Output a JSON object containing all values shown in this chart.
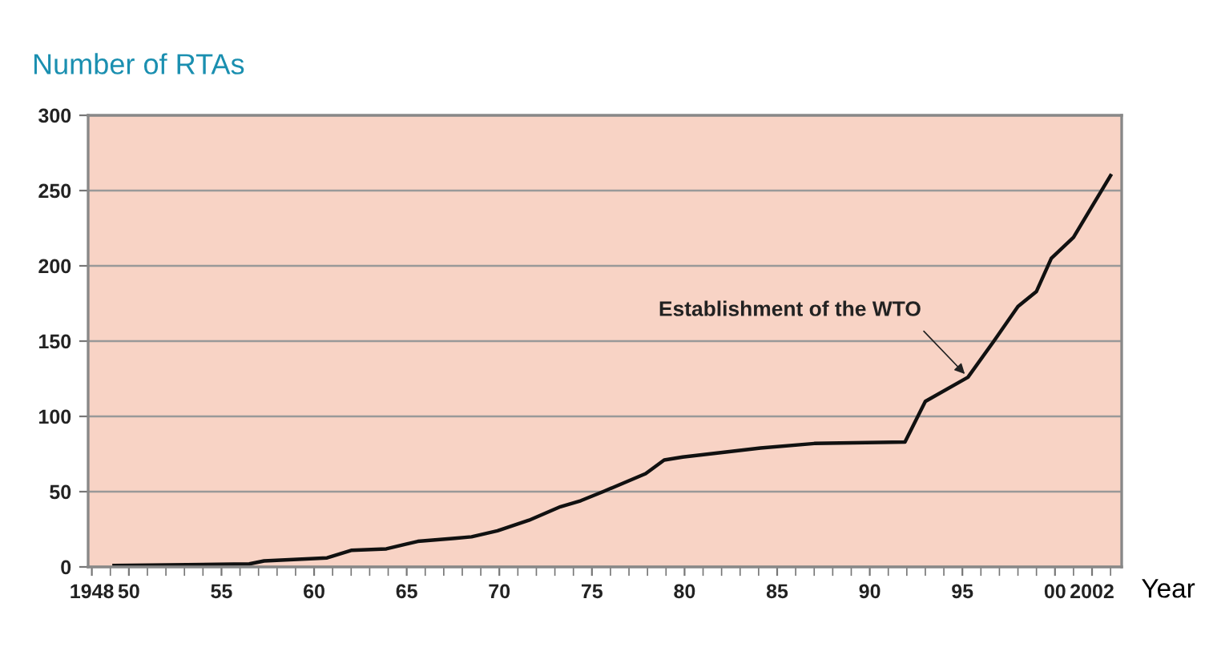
{
  "chart_data": {
    "type": "line",
    "title": "Number of RTAs",
    "xlabel": "Year",
    "x": [
      1949.2,
      1956.5,
      1957.3,
      1960.7,
      1962.0,
      1963.9,
      1965.6,
      1967.6,
      1968.5,
      1969.9,
      1971.6,
      1973.3,
      1974.4,
      1975.6,
      1977.9,
      1978.9,
      1979.9,
      1984.1,
      1987.0,
      1991.9,
      1993.0,
      1995.3,
      1996.7,
      1998.0,
      1999.0,
      1999.8,
      2001.0,
      2003.0
    ],
    "series": [
      {
        "color": "#111111",
        "values": [
          1,
          2,
          4,
          6,
          11,
          12,
          17,
          19,
          20,
          24,
          31,
          40,
          44,
          50,
          62,
          71,
          73,
          79,
          82,
          83,
          110,
          126,
          150,
          173,
          183,
          205,
          219,
          260
        ]
      }
    ],
    "annotations": [
      {
        "text": "Establishment of the WTO",
        "x": 1995.3,
        "y": 126
      }
    ],
    "xlim": [
      1947.8,
      2003.6
    ],
    "xticks": [
      {
        "value": 1948,
        "label": "1948"
      },
      {
        "value": 1950,
        "label": "50"
      },
      {
        "value": 1955,
        "label": "55"
      },
      {
        "value": 1960,
        "label": "60"
      },
      {
        "value": 1965,
        "label": "65"
      },
      {
        "value": 1970,
        "label": "70"
      },
      {
        "value": 1975,
        "label": "75"
      },
      {
        "value": 1980,
        "label": "80"
      },
      {
        "value": 1985,
        "label": "85"
      },
      {
        "value": 1990,
        "label": "90"
      },
      {
        "value": 1995,
        "label": "95"
      },
      {
        "value": 2000,
        "label": "00"
      },
      {
        "value": 2002,
        "label": "2002"
      }
    ],
    "ylim": [
      0,
      300
    ],
    "yticks": [
      0,
      50,
      100,
      150,
      200,
      250,
      300
    ],
    "grid": "y",
    "legend": false,
    "marker": "none",
    "line_style": "solid"
  }
}
